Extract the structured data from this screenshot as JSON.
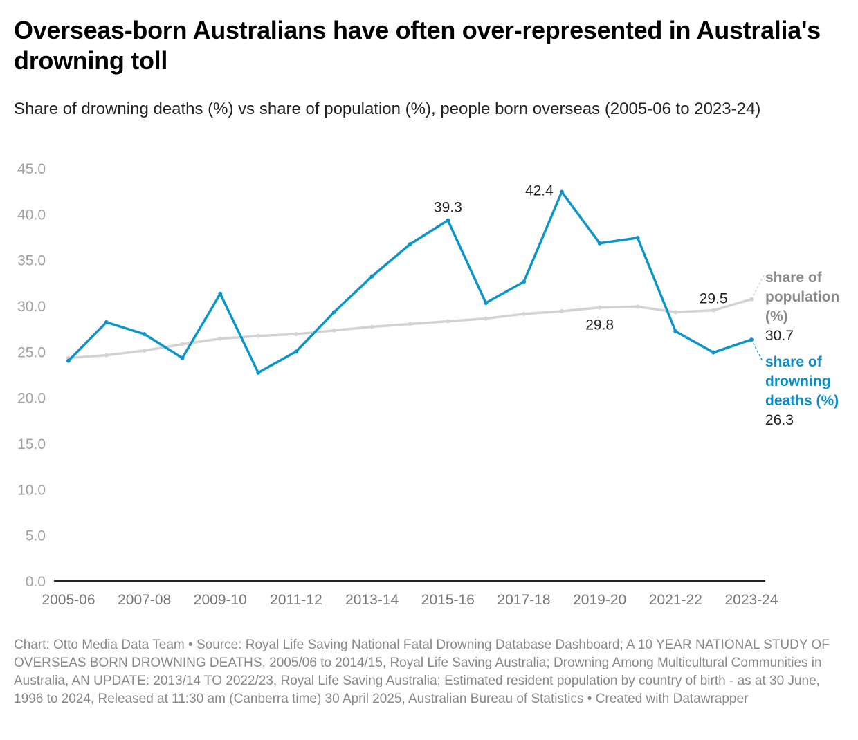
{
  "header": {
    "title": "Overseas-born Australians have often over-represented in Australia's drowning toll",
    "subtitle": "Share of drowning deaths (%) vs share of population (%), people born overseas (2005-06 to 2023-24)"
  },
  "footer": {
    "text": "Chart: Otto Media Data Team • Source: Royal Life Saving National Fatal Drowning Database Dashboard; A 10 YEAR NATIONAL STUDY OF OVERSEAS BORN DROWNING DEATHS, 2005/06 to 2014/15, Royal Life Saving Australia; Drowning Among Multicultural Communities in Australia, AN UPDATE: 2013/14 TO 2022/23, Royal Life Saving Australia; Estimated resident population by country of birth - as at 30 June, 1996 to 2024, Released at 11:30 am (Canberra time) 30 April 2025, Australian Bureau of Statistics • Created with Datawrapper"
  },
  "chart_data": {
    "type": "line",
    "title": "Overseas-born Australians have often over-represented in Australia's drowning toll",
    "subtitle": "Share of drowning deaths (%) vs share of population (%), people born overseas (2005-06 to 2023-24)",
    "xlabel": "",
    "ylabel": "",
    "ylim": [
      0,
      45
    ],
    "yticks": [
      "0.0",
      "5.0",
      "10.0",
      "15.0",
      "20.0",
      "25.0",
      "30.0",
      "35.0",
      "40.0",
      "45.0"
    ],
    "grid": false,
    "x": [
      "2005-06",
      "2006-07",
      "2007-08",
      "2008-09",
      "2009-10",
      "2010-11",
      "2011-12",
      "2012-13",
      "2013-14",
      "2014-15",
      "2015-16",
      "2016-17",
      "2017-18",
      "2018-19",
      "2019-20",
      "2020-21",
      "2021-22",
      "2022-23",
      "2023-24"
    ],
    "xticks": [
      "2005-06",
      "2007-08",
      "2009-10",
      "2011-12",
      "2013-14",
      "2015-16",
      "2017-18",
      "2019-20",
      "2021-22",
      "2023-24"
    ],
    "series": [
      {
        "name": "share of population (%)",
        "legend_lines": [
          "share of",
          "population",
          "(%)"
        ],
        "color": "#d3d3d3",
        "label_color": "#8a8a8a",
        "values": [
          24.3,
          24.6,
          25.1,
          25.8,
          26.4,
          26.7,
          26.9,
          27.3,
          27.7,
          28.0,
          28.3,
          28.6,
          29.1,
          29.4,
          29.8,
          29.9,
          29.3,
          29.5,
          30.7
        ],
        "end_value_label": "30.7"
      },
      {
        "name": "share of drowning deaths (%)",
        "legend_lines": [
          "share of",
          "drowning",
          "deaths (%)"
        ],
        "color": "#0a95cb",
        "label_color": "#0a90c8",
        "values": [
          24.0,
          28.2,
          26.9,
          24.3,
          31.3,
          22.7,
          25.0,
          29.3,
          33.2,
          36.7,
          39.3,
          30.3,
          32.6,
          42.4,
          36.8,
          37.4,
          27.2,
          24.9,
          26.3
        ],
        "end_value_label": "26.3"
      }
    ],
    "annotations": [
      {
        "text": "39.3",
        "x": "2015-16",
        "series": "share of drowning deaths (%)",
        "position": "above"
      },
      {
        "text": "42.4",
        "x": "2018-19",
        "series": "share of drowning deaths (%)",
        "position": "left"
      },
      {
        "text": "29.8",
        "x": "2019-20",
        "series": "share of population (%)",
        "position": "below"
      },
      {
        "text": "29.5",
        "x": "2022-23",
        "series": "share of population (%)",
        "position": "above"
      }
    ],
    "legend": "inline-right"
  }
}
